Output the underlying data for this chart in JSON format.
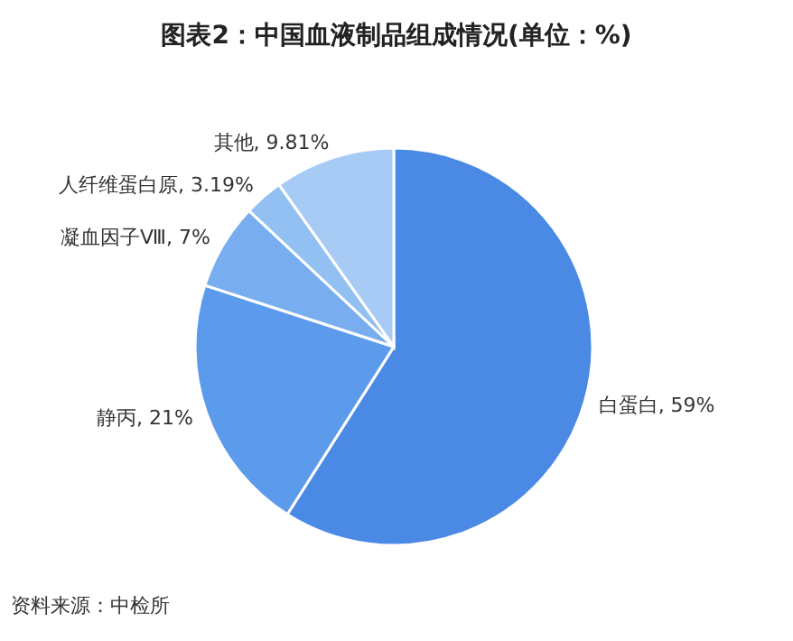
{
  "chart_data": {
    "type": "pie",
    "title": "图表2：中国血液制品组成情况(单位：%)",
    "categories": [
      "白蛋白",
      "静丙",
      "凝血因子Ⅷ",
      "人纤维蛋白原",
      "其他"
    ],
    "values": [
      59,
      21,
      7,
      3.19,
      9.81
    ],
    "value_labels": [
      "59%",
      "21%",
      "7%",
      "3.19%",
      "9.81%"
    ],
    "colors": [
      "#4a8ae4",
      "#5c9bec",
      "#78aef0",
      "#93c0f3",
      "#a8cbf5"
    ],
    "legend": false,
    "annotations": [
      "资料来源：中检所"
    ]
  }
}
